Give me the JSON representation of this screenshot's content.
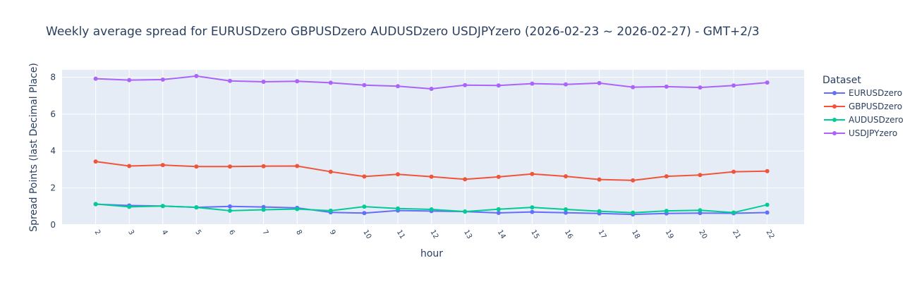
{
  "chart_data": {
    "type": "line",
    "title": "Weekly average spread for  EURUSDzero GBPUSDzero AUDUSDzero USDJPYzero (2026-02-23 ~ 2026-02-27) - GMT+2/3",
    "xlabel": "hour",
    "ylabel": "Spread Points (last Decimal Place)",
    "x": [
      2,
      3,
      4,
      5,
      6,
      7,
      8,
      9,
      10,
      11,
      12,
      13,
      14,
      15,
      16,
      17,
      18,
      19,
      20,
      21,
      22
    ],
    "x_range": [
      1.0,
      23.1
    ],
    "ylim": [
      0,
      8.4
    ],
    "y_ticks": [
      0,
      2,
      4,
      6,
      8
    ],
    "grid": true,
    "legend": {
      "title": "Dataset",
      "placement": "right"
    },
    "series": [
      {
        "name": "EURUSDzero",
        "color": "#636efa",
        "values": [
          1.12,
          1.05,
          1.02,
          0.95,
          1.0,
          0.97,
          0.92,
          0.68,
          0.64,
          0.78,
          0.75,
          0.72,
          0.65,
          0.7,
          0.66,
          0.62,
          0.57,
          0.62,
          0.64,
          0.63,
          0.67
        ]
      },
      {
        "name": "GBPUSDzero",
        "color": "#EF553B",
        "values": [
          3.43,
          3.19,
          3.24,
          3.16,
          3.16,
          3.18,
          3.19,
          2.88,
          2.62,
          2.74,
          2.61,
          2.47,
          2.6,
          2.76,
          2.63,
          2.46,
          2.41,
          2.63,
          2.7,
          2.88,
          2.91
        ]
      },
      {
        "name": "AUDUSDzero",
        "color": "#00cc96",
        "values": [
          1.13,
          0.98,
          1.02,
          0.95,
          0.77,
          0.82,
          0.86,
          0.77,
          0.99,
          0.89,
          0.84,
          0.72,
          0.85,
          0.95,
          0.84,
          0.74,
          0.66,
          0.76,
          0.79,
          0.67,
          1.09
        ]
      },
      {
        "name": "USDJPYzero",
        "color": "#ab63fa",
        "values": [
          7.92,
          7.84,
          7.87,
          8.06,
          7.8,
          7.75,
          7.78,
          7.7,
          7.57,
          7.51,
          7.37,
          7.57,
          7.55,
          7.65,
          7.61,
          7.68,
          7.46,
          7.49,
          7.44,
          7.55,
          7.71
        ]
      }
    ]
  }
}
